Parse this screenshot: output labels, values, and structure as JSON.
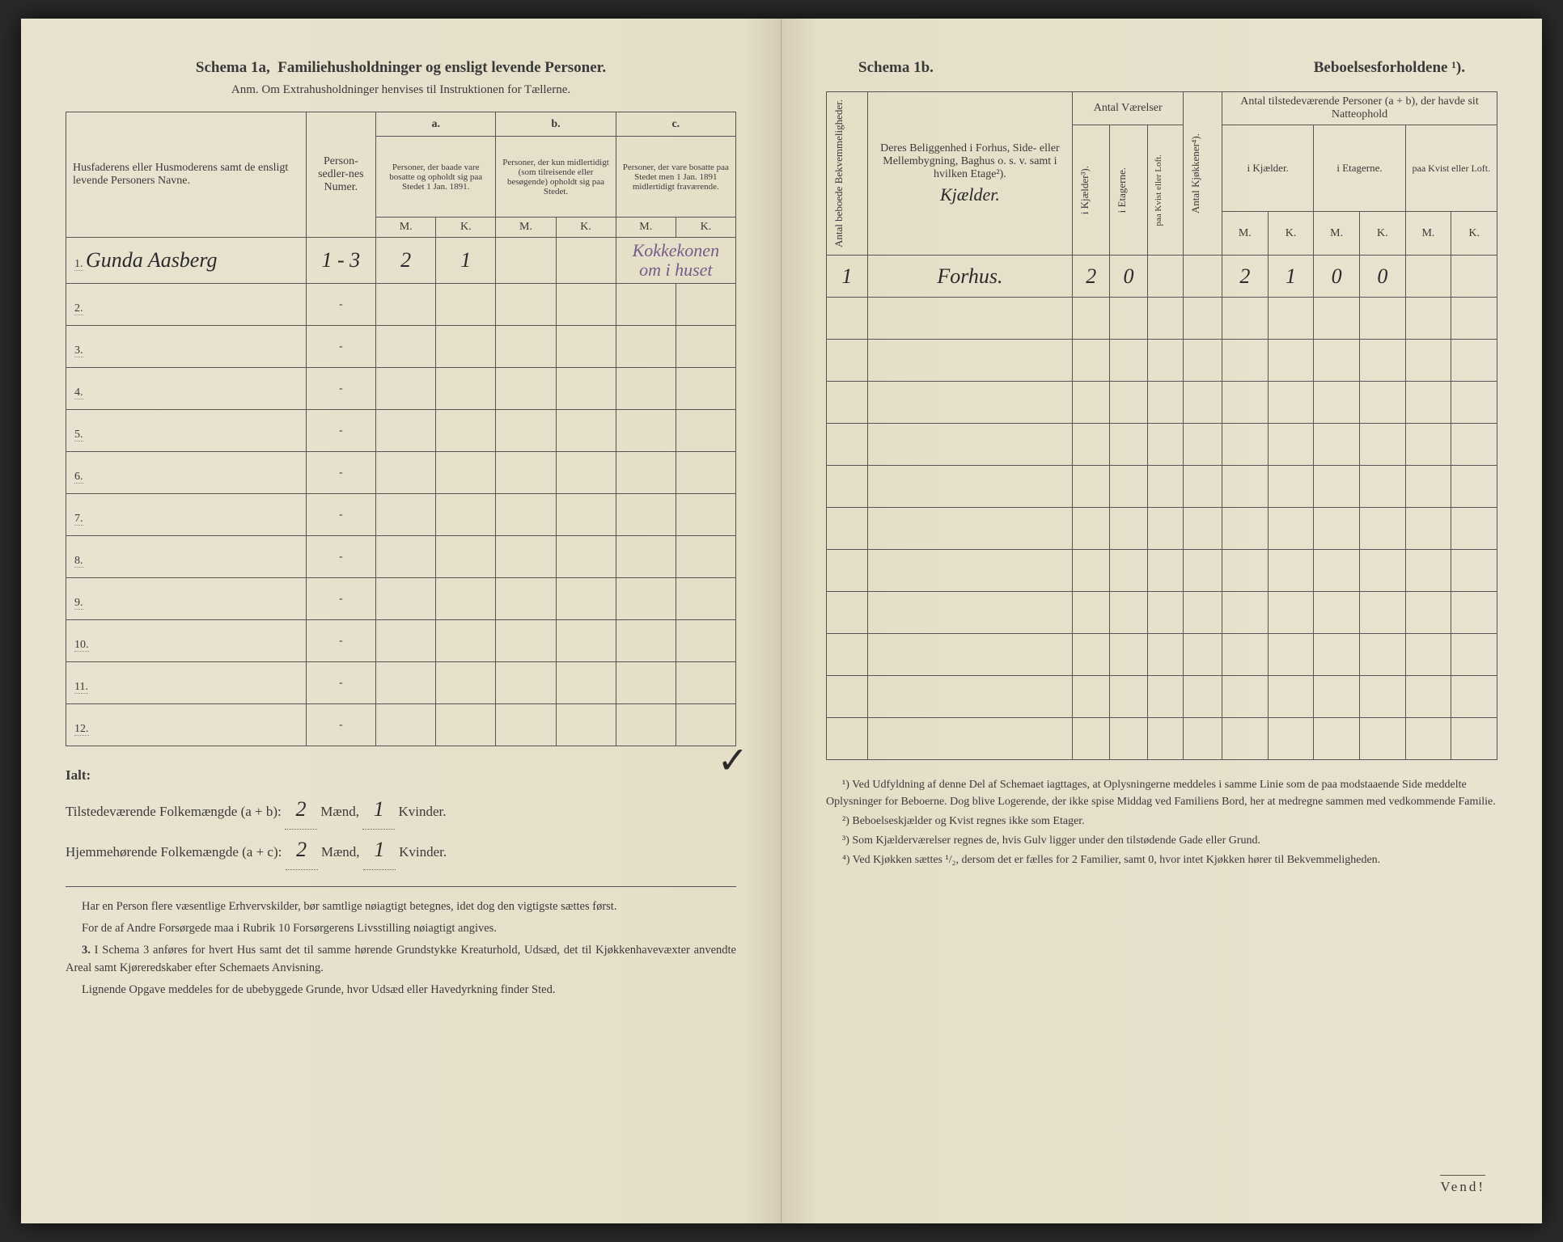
{
  "left": {
    "schema_label": "Schema 1a,",
    "schema_title": "Familiehusholdninger og ensligt levende Personer.",
    "anm": "Anm. Om Extrahusholdninger henvises til Instruktionen for Tællerne.",
    "header_names": "Husfaderens eller Husmoderens samt de ensligt levende Personers Navne.",
    "header_numer": "Person-sedler-nes Numer.",
    "header_a": "a.",
    "header_b": "b.",
    "header_c": "c.",
    "header_a_text": "Personer, der baade vare bosatte og opholdt sig paa Stedet 1 Jan. 1891.",
    "header_b_text": "Personer, der kun midlertidigt (som tilreisende eller besøgende) opholdt sig paa Stedet.",
    "header_c_text": "Personer, der vare bosatte paa Stedet men 1 Jan. 1891 midlertidigt fraværende.",
    "mk_m": "M.",
    "mk_k": "K.",
    "rows": [
      {
        "n": "1.",
        "name": "Gunda Aasberg",
        "num": "1 - 3",
        "am": "2",
        "ak": "1",
        "bm": "",
        "bk": "",
        "cm": "",
        "ck": "",
        "note": "Kokkekonen om i huset"
      },
      {
        "n": "2.",
        "name": "",
        "num": "-",
        "am": "",
        "ak": "",
        "bm": "",
        "bk": "",
        "cm": "",
        "ck": "",
        "note": ""
      },
      {
        "n": "3.",
        "name": "",
        "num": "-",
        "am": "",
        "ak": "",
        "bm": "",
        "bk": "",
        "cm": "",
        "ck": "",
        "note": ""
      },
      {
        "n": "4.",
        "name": "",
        "num": "-",
        "am": "",
        "ak": "",
        "bm": "",
        "bk": "",
        "cm": "",
        "ck": "",
        "note": ""
      },
      {
        "n": "5.",
        "name": "",
        "num": "-",
        "am": "",
        "ak": "",
        "bm": "",
        "bk": "",
        "cm": "",
        "ck": "",
        "note": ""
      },
      {
        "n": "6.",
        "name": "",
        "num": "-",
        "am": "",
        "ak": "",
        "bm": "",
        "bk": "",
        "cm": "",
        "ck": "",
        "note": ""
      },
      {
        "n": "7.",
        "name": "",
        "num": "-",
        "am": "",
        "ak": "",
        "bm": "",
        "bk": "",
        "cm": "",
        "ck": "",
        "note": ""
      },
      {
        "n": "8.",
        "name": "",
        "num": "-",
        "am": "",
        "ak": "",
        "bm": "",
        "bk": "",
        "cm": "",
        "ck": "",
        "note": ""
      },
      {
        "n": "9.",
        "name": "",
        "num": "-",
        "am": "",
        "ak": "",
        "bm": "",
        "bk": "",
        "cm": "",
        "ck": "",
        "note": ""
      },
      {
        "n": "10.",
        "name": "",
        "num": "-",
        "am": "",
        "ak": "",
        "bm": "",
        "bk": "",
        "cm": "",
        "ck": "",
        "note": ""
      },
      {
        "n": "11.",
        "name": "",
        "num": "-",
        "am": "",
        "ak": "",
        "bm": "",
        "bk": "",
        "cm": "",
        "ck": "",
        "note": ""
      },
      {
        "n": "12.",
        "name": "",
        "num": "-",
        "am": "",
        "ak": "",
        "bm": "",
        "bk": "",
        "cm": "",
        "ck": "",
        "note": ""
      }
    ],
    "ialt": "Ialt:",
    "tilstede": "Tilstedeværende Folkemængde (a + b):",
    "hjemme": "Hjemmehørende Folkemængde (a + c):",
    "maend": "Mænd,",
    "kvinder": "Kvinder.",
    "sum_m1": "2",
    "sum_k1": "1",
    "sum_m2": "2",
    "sum_k2": "1",
    "note1": "Har en Person flere væsentlige Erhvervskilder, bør samtlige nøiagtigt betegnes, idet dog den vigtigste sættes først.",
    "note2": "For de af Andre Forsørgede maa i Rubrik 10 Forsørgerens Livsstilling nøiagtigt angives.",
    "note3_n": "3.",
    "note3": "I Schema 3 anføres for hvert Hus samt det til samme hørende Grundstykke Kreaturhold, Udsæd, det til Kjøkkenhavevæxter anvendte Areal samt Kjøreredskaber efter Schemaets Anvisning.",
    "note4": "Lignende Opgave meddeles for de ubebyggede Grunde, hvor Udsæd eller Havedyrkning finder Sted."
  },
  "right": {
    "schema_label": "Schema 1b.",
    "schema_title": "Beboelsesforholdene ¹).",
    "h_antal_bekv": "Antal beboede Bekvemmeligheder.",
    "h_beliggenhed": "Deres Beliggenhed i Forhus, Side- eller Mellembygning, Baghus o. s. v. samt i hvilken Etage²).",
    "h_antal_vaer": "Antal Værelser",
    "h_kjokken": "Antal Kjøkkener⁴).",
    "h_natteophold": "Antal tilstedeværende Personer (a + b), der havde sit Natteophold",
    "h_kjaelder": "i Kjælder³).",
    "h_etagerne": "i Etagerne.",
    "h_kvist": "paa Kvist eller Loft.",
    "h_kjael_short": "i Kjælder.",
    "h_etag_short": "i Etagerne.",
    "h_kvist_short": "paa Kvist eller Loft.",
    "mk_m": "M.",
    "mk_k": "K.",
    "row1": {
      "bekv": "1",
      "beliggenhed_top": "Kjælder.",
      "beliggenhed": "Forhus.",
      "kj": "2",
      "et": "0",
      "kv": "",
      "kjk": "",
      "n_kj_m": "2",
      "n_kj_k": "1",
      "n_et_m": "0",
      "n_et_k": "0",
      "n_kv_m": "",
      "n_kv_k": ""
    },
    "fn1": "¹) Ved Udfyldning af denne Del af Schemaet iagttages, at Oplysningerne meddeles i samme Linie som de paa modstaaende Side meddelte Oplysninger for Beboerne. Dog blive Logerende, der ikke spise Middag ved Familiens Bord, her at medregne sammen med vedkommende Familie.",
    "fn2": "²) Beboelseskjælder og Kvist regnes ikke som Etager.",
    "fn3": "³) Som Kjælderværelser regnes de, hvis Gulv ligger under den tilstødende Gade eller Grund.",
    "fn4": "⁴) Ved Kjøkken sættes ¹/₂, dersom det er fælles for 2 Familier, samt 0, hvor intet Kjøkken hører til Bekvemmeligheden.",
    "vend": "Vend!"
  }
}
